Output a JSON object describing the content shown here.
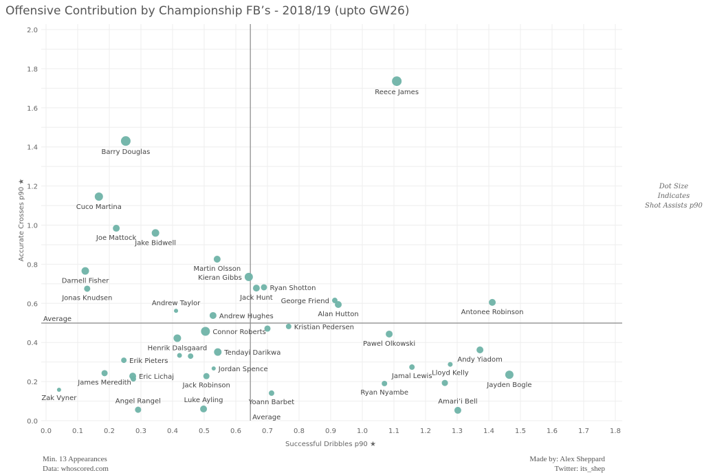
{
  "chart_data": {
    "type": "scatter",
    "title": "Offensive Contribution by Championship FB’s - 2018/19 (upto GW26)",
    "xlabel": "Successful Dribbles p90",
    "ylabel": "Accurate Crosses p90",
    "xlim": [
      0,
      1.8
    ],
    "ylim": [
      0,
      2.0
    ],
    "x_ticks": [
      "0.0",
      "0.1",
      "0.2",
      "0.3",
      "0.4",
      "0.5",
      "0.6",
      "0.7",
      "0.8",
      "0.9",
      "1.0",
      "1.1",
      "1.2",
      "1.3",
      "1.4",
      "1.5",
      "1.6",
      "1.7",
      "1.8"
    ],
    "y_ticks": [
      "0.0",
      "0.2",
      "0.4",
      "0.6",
      "0.8",
      "1.0",
      "1.2",
      "1.4",
      "1.6",
      "1.8",
      "2.0"
    ],
    "grid": true,
    "color": "#6fb3a8",
    "size_legend": [
      "Dot Size",
      "Indicates",
      "Shot Assists p90"
    ],
    "average_x": {
      "value": 0.646,
      "label": "Average"
    },
    "average_y": {
      "value": 0.499,
      "label": "Average"
    },
    "points": [
      {
        "name": "Reece James",
        "x": 1.109,
        "y": 1.736,
        "size": 2.0
      },
      {
        "name": "Barry Douglas",
        "x": 0.252,
        "y": 1.43,
        "size": 2.0
      },
      {
        "name": "Cuco Martina",
        "x": 0.167,
        "y": 1.146,
        "size": 1.47
      },
      {
        "name": "Joe Mattock",
        "x": 0.222,
        "y": 0.984,
        "size": 1.02
      },
      {
        "name": "Jake Bidwell",
        "x": 0.346,
        "y": 0.96,
        "size": 1.23
      },
      {
        "name": "Martin Olsson",
        "x": 0.541,
        "y": 0.826,
        "size": 1.02
      },
      {
        "name": "Kieran Gibbs",
        "x": 0.641,
        "y": 0.735,
        "size": 1.47
      },
      {
        "name": "Ryan Shotton",
        "x": 0.689,
        "y": 0.682,
        "size": 0.83
      },
      {
        "name": "Jack Hunt",
        "x": 0.665,
        "y": 0.678,
        "size": 1.02
      },
      {
        "name": "Darnell Fisher",
        "x": 0.124,
        "y": 0.766,
        "size": 1.23
      },
      {
        "name": "Jonas Knudsen",
        "x": 0.13,
        "y": 0.675,
        "size": 0.83
      },
      {
        "name": "George Friend",
        "x": 0.913,
        "y": 0.615,
        "size": 0.65
      },
      {
        "name": "Alan Hutton",
        "x": 0.924,
        "y": 0.594,
        "size": 1.02
      },
      {
        "name": "Antonee Robinson",
        "x": 1.411,
        "y": 0.605,
        "size": 1.02
      },
      {
        "name": "Andrew Taylor",
        "x": 0.411,
        "y": 0.562,
        "size": 0.37
      },
      {
        "name": "Andrew Hughes",
        "x": 0.528,
        "y": 0.538,
        "size": 1.02
      },
      {
        "name": "Connor Roberts",
        "x": 0.504,
        "y": 0.457,
        "size": 1.72
      },
      {
        "name": "",
        "x": 0.7,
        "y": 0.471,
        "size": 0.83
      },
      {
        "name": "Kristian Pedersen",
        "x": 0.767,
        "y": 0.482,
        "size": 0.65
      },
      {
        "name": "Pawel Olkowski",
        "x": 1.085,
        "y": 0.443,
        "size": 1.02
      },
      {
        "name": "Henrik Dalsgaard",
        "x": 0.415,
        "y": 0.422,
        "size": 1.23
      },
      {
        "name": "",
        "x": 0.422,
        "y": 0.334,
        "size": 0.5
      },
      {
        "name": "",
        "x": 0.457,
        "y": 0.33,
        "size": 0.65
      },
      {
        "name": "Tendayi Darikwa",
        "x": 0.543,
        "y": 0.351,
        "size": 1.23
      },
      {
        "name": "Erik Pieters",
        "x": 0.246,
        "y": 0.309,
        "size": 0.65
      },
      {
        "name": "Jordan Spence",
        "x": 0.53,
        "y": 0.267,
        "size": 0.37
      },
      {
        "name": "Andy Yiadom",
        "x": 1.372,
        "y": 0.362,
        "size": 1.02
      },
      {
        "name": "Lloyd Kelly",
        "x": 1.278,
        "y": 0.288,
        "size": 0.5
      },
      {
        "name": "",
        "x": 1.261,
        "y": 0.193,
        "size": 0.83
      },
      {
        "name": "Jamal Lewis",
        "x": 1.157,
        "y": 0.274,
        "size": 0.65
      },
      {
        "name": "James Meredith",
        "x": 0.185,
        "y": 0.243,
        "size": 0.83
      },
      {
        "name": "Eric Lichaj",
        "x": 0.274,
        "y": 0.228,
        "size": 1.02
      },
      {
        "name": "",
        "x": 0.276,
        "y": 0.214,
        "size": 0.65
      },
      {
        "name": "Jack Robinson",
        "x": 0.507,
        "y": 0.228,
        "size": 0.83
      },
      {
        "name": "Ryan Nyambe",
        "x": 1.07,
        "y": 0.19,
        "size": 0.65
      },
      {
        "name": "Jayden Bogle",
        "x": 1.465,
        "y": 0.235,
        "size": 1.47
      },
      {
        "name": "Zak Vyner",
        "x": 0.041,
        "y": 0.158,
        "size": 0.37
      },
      {
        "name": "Yoann Barbet",
        "x": 0.713,
        "y": 0.141,
        "size": 0.65
      },
      {
        "name": "Angel Rangel",
        "x": 0.291,
        "y": 0.056,
        "size": 0.83
      },
      {
        "name": "Luke Ayling",
        "x": 0.498,
        "y": 0.06,
        "size": 1.02
      },
      {
        "name": "Amari’i Bell",
        "x": 1.302,
        "y": 0.053,
        "size": 1.02
      }
    ]
  },
  "footer": {
    "left": [
      "Min. 13 Appearances",
      "Data: whoscored.com"
    ],
    "right": [
      "Made by: Alex Sheppard",
      "Twitter: its_shep"
    ]
  }
}
